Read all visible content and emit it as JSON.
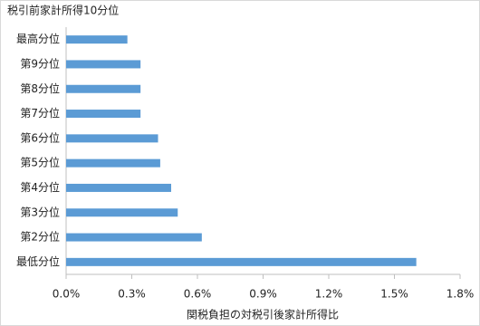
{
  "chart_data": {
    "type": "bar",
    "orientation": "horizontal",
    "title": "税引前家計所得10分位",
    "x_label": "関税負担の対税引後家計所得比",
    "categories": [
      "最高分位",
      "第9分位",
      "第8分位",
      "第7分位",
      "第6分位",
      "第5分位",
      "第4分位",
      "第3分位",
      "第2分位",
      "最低分位"
    ],
    "values": [
      0.28,
      0.34,
      0.34,
      0.34,
      0.42,
      0.43,
      0.48,
      0.51,
      0.62,
      1.6
    ],
    "color": "#5b9bd5",
    "xlim": [
      0,
      1.8
    ],
    "xticks": [
      {
        "value": 0,
        "label": "0.0%"
      },
      {
        "value": 0.3,
        "label": "0.3%"
      },
      {
        "value": 0.6,
        "label": "0.6%"
      },
      {
        "value": 0.9,
        "label": "0.9%"
      },
      {
        "value": 1.2,
        "label": "1.2%"
      },
      {
        "value": 1.5,
        "label": "1.5%"
      },
      {
        "value": 1.8,
        "label": "1.8%"
      }
    ],
    "grid": false
  }
}
